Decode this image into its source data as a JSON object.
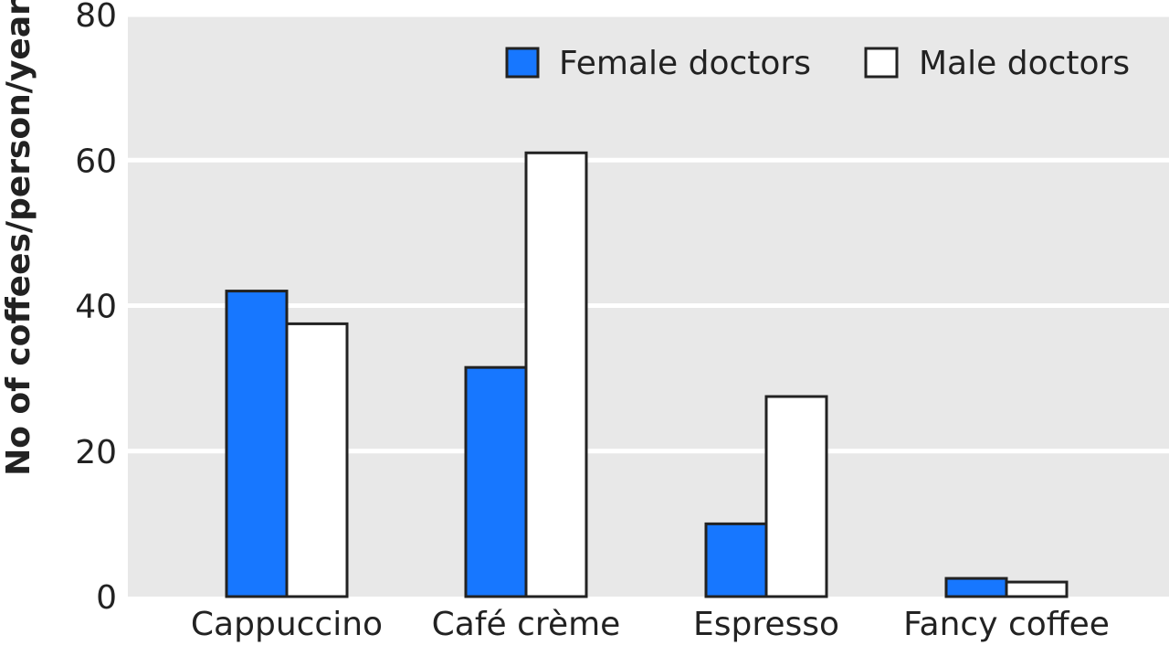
{
  "chart_data": {
    "type": "bar",
    "ylabel": "No of coffees/person/year",
    "xlabel": "",
    "ylim": [
      0,
      80
    ],
    "yticks": [
      0,
      20,
      40,
      60,
      80
    ],
    "categories": [
      "Cappuccino",
      "Café crème",
      "Espresso",
      "Fancy coffee"
    ],
    "series": [
      {
        "name": "Female doctors",
        "color": "#1777ff",
        "values": [
          42,
          31.5,
          10,
          2.5
        ]
      },
      {
        "name": "Male doctors",
        "color": "#ffffff",
        "values": [
          37.5,
          61,
          27.5,
          2
        ]
      }
    ],
    "grid": true,
    "background": "#e8e8e8",
    "legend_position": "top-right"
  }
}
